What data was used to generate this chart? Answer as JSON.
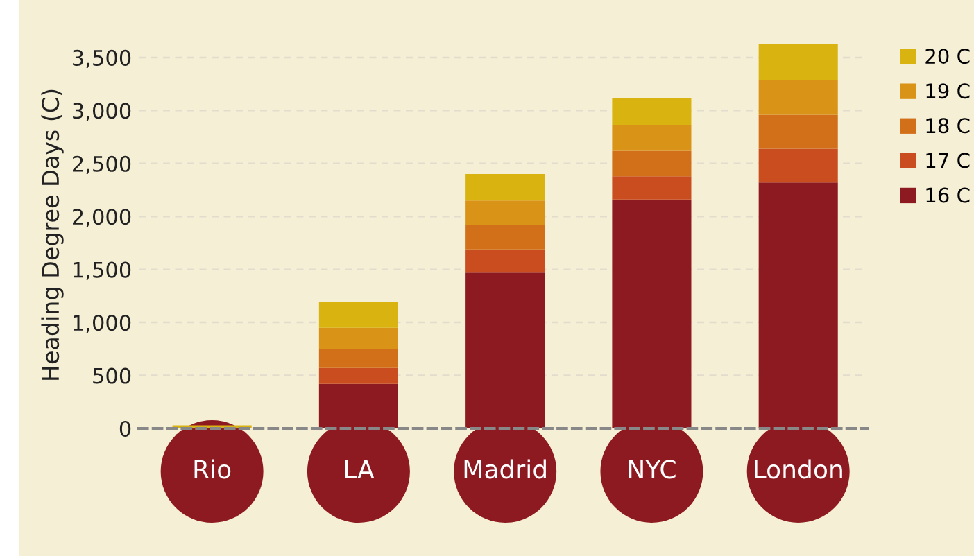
{
  "chart_data": {
    "type": "bar",
    "stacked": true,
    "ylabel": "Heading Degree Days (C)",
    "categories": [
      "Rio",
      "LA",
      "Madrid",
      "NYC",
      "London"
    ],
    "series": [
      {
        "name": "16 C",
        "color": "#8e1a21",
        "values": [
          0,
          420,
          1470,
          2160,
          2320
        ]
      },
      {
        "name": "17 C",
        "color": "#c94d1f",
        "values": [
          0,
          150,
          220,
          220,
          320
        ]
      },
      {
        "name": "18 C",
        "color": "#d2701a",
        "values": [
          0,
          180,
          230,
          240,
          320
        ]
      },
      {
        "name": "19 C",
        "color": "#d99316",
        "values": [
          0,
          200,
          230,
          240,
          330
        ]
      },
      {
        "name": "20 C",
        "color": "#d9b310",
        "values": [
          30,
          240,
          250,
          260,
          340
        ]
      }
    ],
    "ylim": [
      0,
      3650
    ],
    "yticks": [
      {
        "value": 0,
        "label": "0"
      },
      {
        "value": 500,
        "label": "500"
      },
      {
        "value": 1000,
        "label": "1,000"
      },
      {
        "value": 1500,
        "label": "1,500"
      },
      {
        "value": 2000,
        "label": "2,000"
      },
      {
        "value": 2500,
        "label": "2,500"
      },
      {
        "value": 3000,
        "label": "3,000"
      },
      {
        "value": 3500,
        "label": "3,500"
      }
    ],
    "grid": "y",
    "legend": "top right"
  }
}
